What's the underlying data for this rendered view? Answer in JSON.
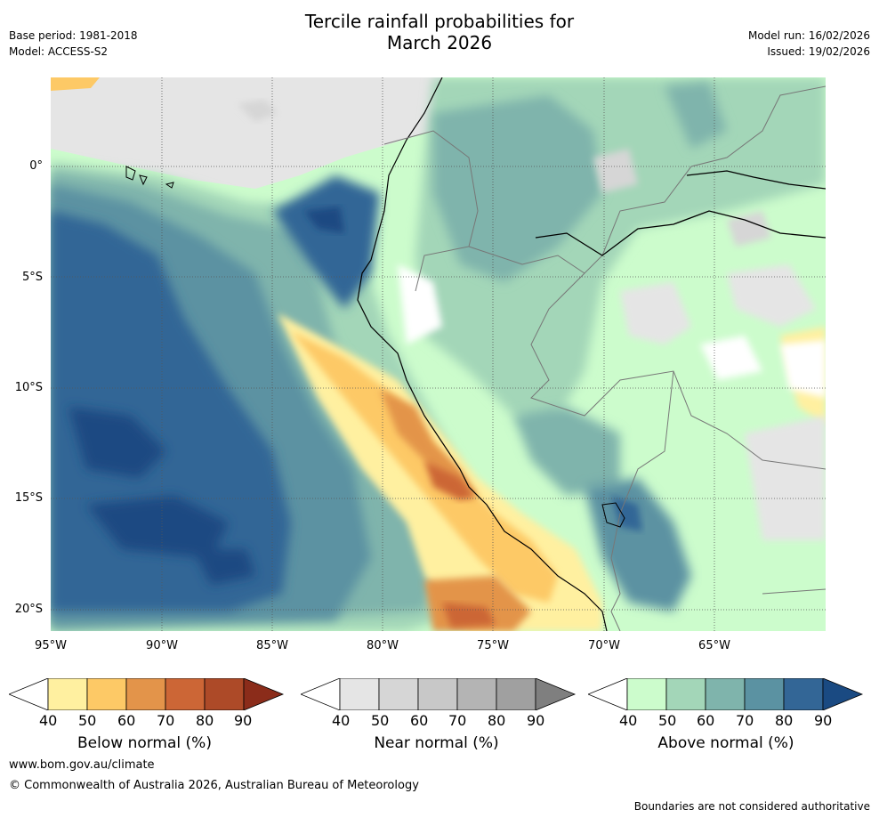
{
  "title_line1": "Tercile rainfall probabilities for",
  "title_line2": "March 2026",
  "base_period": "Base period: 1981-2018",
  "model": "Model: ACCESS-S2",
  "model_run": "Model run: 16/02/2026",
  "issued": "Issued: 19/02/2026",
  "y_axis_labels": [
    "0°",
    "5°S",
    "10°S",
    "15°S",
    "20°S"
  ],
  "x_axis_labels": [
    "95°W",
    "90°W",
    "85°W",
    "80°W",
    "75°W",
    "70°W",
    "65°W"
  ],
  "colorbars": [
    {
      "label": "Below normal (%)",
      "ticks": [
        "40",
        "50",
        "60",
        "70",
        "80",
        "90"
      ],
      "colors": [
        "#ffffff",
        "#fff0a0",
        "#fdc966",
        "#e3944a",
        "#cc6636",
        "#ad4a28",
        "#8b2c1a"
      ]
    },
    {
      "label": "Near normal (%)",
      "ticks": [
        "40",
        "50",
        "60",
        "70",
        "80",
        "90"
      ],
      "colors": [
        "#ffffff",
        "#e5e5e5",
        "#d6d6d6",
        "#c8c8c8",
        "#b4b4b4",
        "#a0a0a0",
        "#7f7f7f"
      ]
    },
    {
      "label": "Above normal (%)",
      "ticks": [
        "40",
        "50",
        "60",
        "70",
        "80",
        "90"
      ],
      "colors": [
        "#ffffff",
        "#ccfccc",
        "#a3d6b8",
        "#7fb4ac",
        "#5b92a2",
        "#336696",
        "#1a4a82"
      ]
    }
  ],
  "website": "www.bom.gov.au/climate",
  "copyright": "© Commonwealth of Australia 2026, Australian Bureau of Meteorology",
  "disclaimer": "Boundaries are not considered authoritative"
}
